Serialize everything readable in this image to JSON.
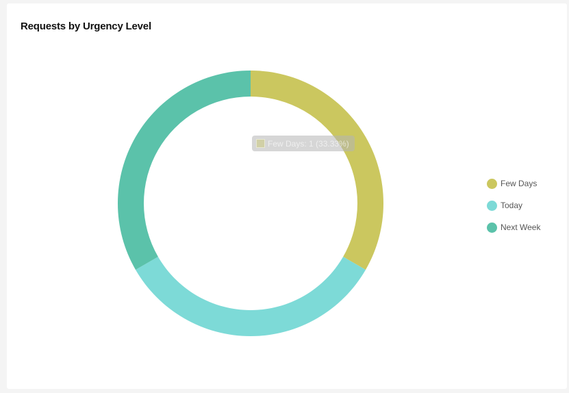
{
  "chart_data": {
    "type": "pie",
    "title": "Requests by Urgency Level",
    "donut": true,
    "categories": [
      "Few Days",
      "Today",
      "Next Week"
    ],
    "values": [
      1,
      1,
      1
    ],
    "colors": [
      "#cbc75f",
      "#7ddad7",
      "#5bc2aa"
    ],
    "legend": "right",
    "tooltip": {
      "text": "Few Days: 1 (33.33%)"
    }
  }
}
